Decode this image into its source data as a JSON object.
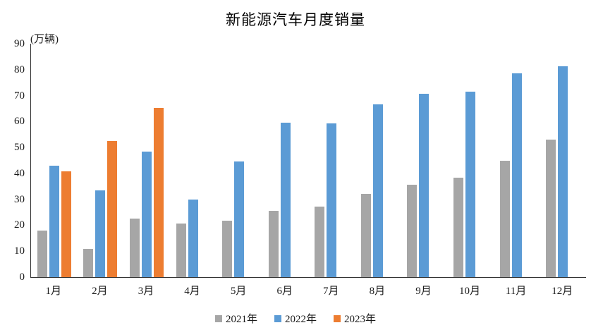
{
  "unit_label": "(万辆)",
  "chart_data": {
    "type": "bar",
    "title": "新能源汽车月度销量",
    "ylabel": "万辆",
    "categories": [
      "1月",
      "2月",
      "3月",
      "4月",
      "5月",
      "6月",
      "7月",
      "8月",
      "9月",
      "10月",
      "11月",
      "12月"
    ],
    "series": [
      {
        "name": "2021年",
        "color": "#A6A6A6",
        "values": [
          17.9,
          11.0,
          22.6,
          20.6,
          21.7,
          25.6,
          27.1,
          32.1,
          35.7,
          38.3,
          45.0,
          53.1
        ]
      },
      {
        "name": "2022年",
        "color": "#5B9BD5",
        "values": [
          43.1,
          33.4,
          48.4,
          29.9,
          44.7,
          59.6,
          59.3,
          66.6,
          70.8,
          71.4,
          78.6,
          81.4
        ]
      },
      {
        "name": "2023年",
        "color": "#ED7D31",
        "values": [
          40.8,
          52.5,
          65.3,
          null,
          null,
          null,
          null,
          null,
          null,
          null,
          null,
          null
        ]
      }
    ],
    "ylim": [
      0,
      90
    ],
    "y_tick_step": 10,
    "grid": false,
    "legend_position": "bottom"
  }
}
